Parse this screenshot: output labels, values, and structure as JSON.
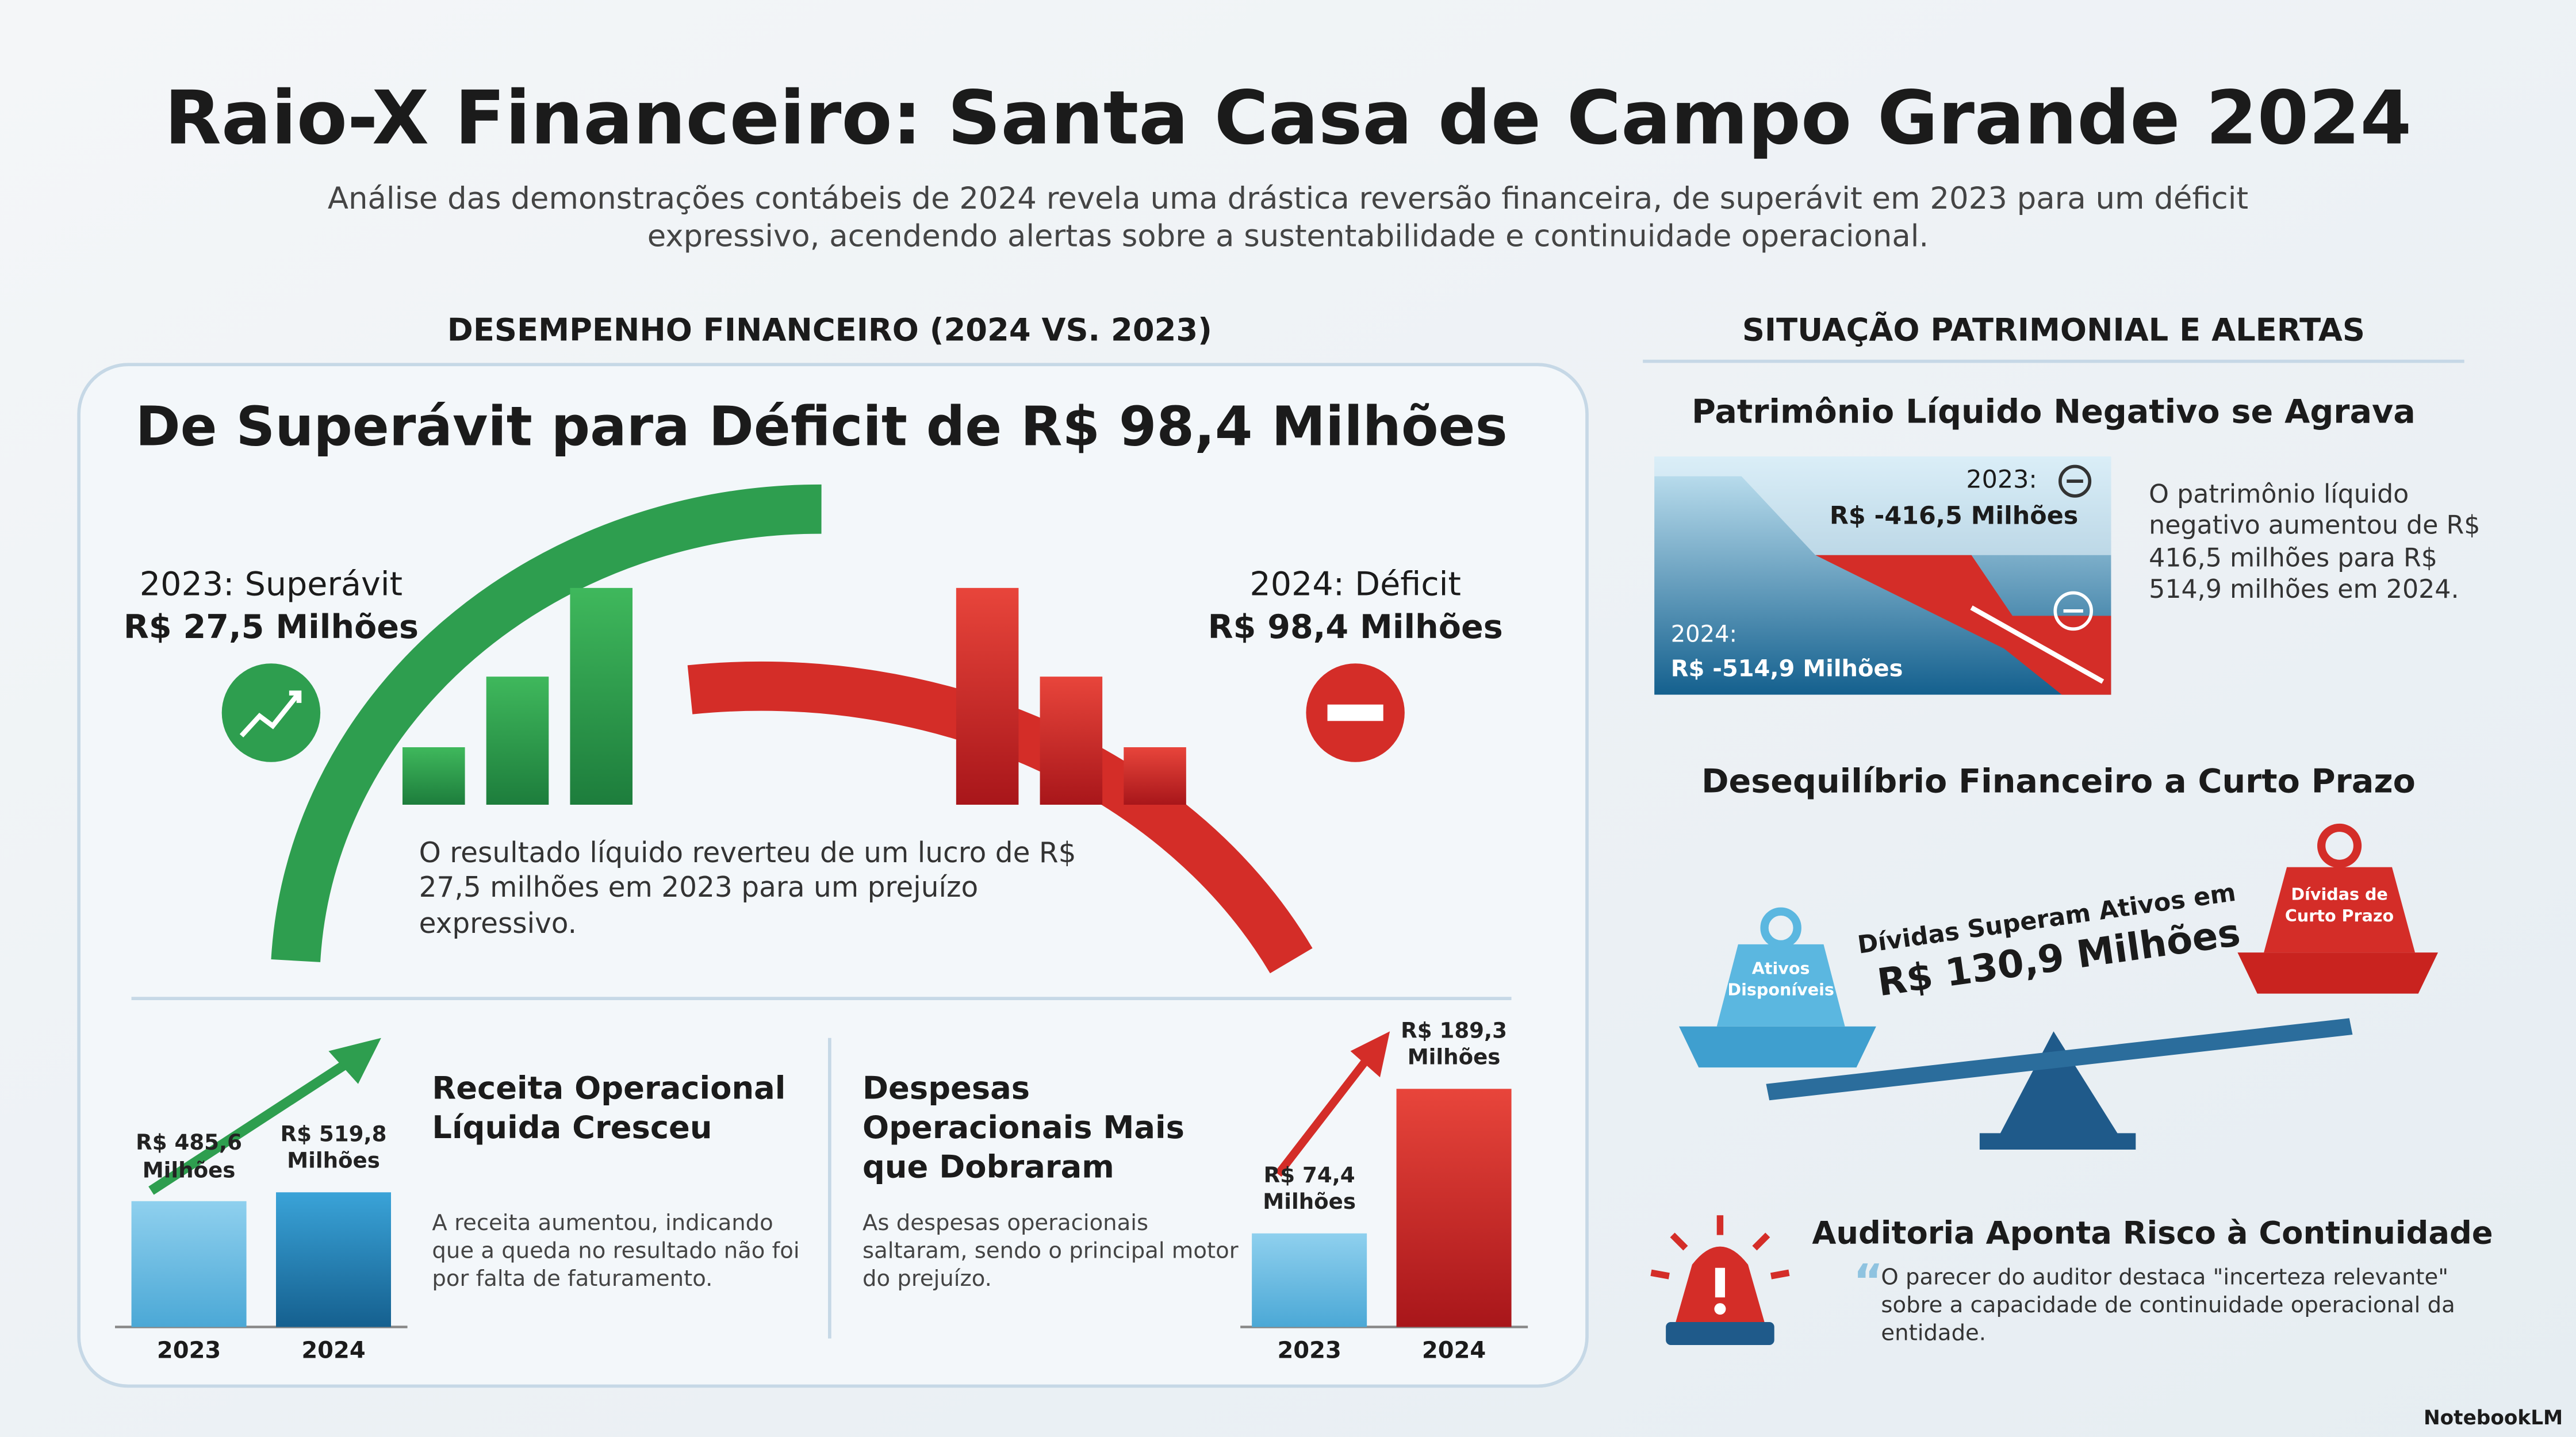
{
  "header": {
    "title": "Raio-X Financeiro: Santa Casa de Campo Grande 2024",
    "subtitle": "Análise das demonstrações contábeis de 2024 revela uma drástica reversão financeira, de superávit em 2023 para um déficit expressivo, acendendo alertas sobre a sustentabilidade e continuidade operacional."
  },
  "performance": {
    "heading": "DESEMPENHO FINANCEIRO (2024 VS. 2023)",
    "title": "De Superávit para Déficit de R$ 98,4 Milhões",
    "label_2023": "2023: Superávit",
    "value_2023": "R$ 27,5 Milhões",
    "label_2024": "2024: Déficit",
    "value_2024": "R$ 98,4 Milhões",
    "note": "O resultado líquido reverteu de um lucro de R$ 27,5 milhões em 2023 para um prejuízo expressivo."
  },
  "revenue": {
    "title": "Receita Operacional Líquida Cresceu",
    "text": "A receita aumentou, indicando que a queda no resultado não foi por falta de faturamento.",
    "categories": [
      "2023",
      "2024"
    ],
    "values": [
      485.6,
      519.8
    ],
    "value_labels": [
      "R$ 485,6 Milhões",
      "R$ 519,8 Milhões"
    ]
  },
  "expenses": {
    "title": "Despesas Operacionais Mais que Dobraram",
    "text": "As despesas operacionais saltaram, sendo o principal motor do prejuízo.",
    "categories": [
      "2023",
      "2024"
    ],
    "values": [
      74.4,
      189.3
    ],
    "value_labels": [
      "R$ 74,4 Milhões",
      "R$ 189,3 Milhões"
    ]
  },
  "situation": {
    "heading": "SITUAÇÃO PATRIMONIAL E ALERTAS",
    "equity": {
      "title": "Patrimônio Líquido Negativo se Agrava",
      "label_2023": "2023:",
      "value_2023": "R$ -416,5 Milhões",
      "label_2024": "2024:",
      "value_2024": "R$ -514,9 Milhões",
      "text": "O patrimônio líquido negativo aumentou de R$ 416,5 milhões para R$ 514,9 milhões em 2024."
    },
    "balance": {
      "title": "Desequilíbrio Financeiro a Curto Prazo",
      "left_weight": "Ativos Disponíveis",
      "right_weight": "Dívidas de Curto Prazo",
      "caption": "Dívidas Superam Ativos em",
      "value": "R$ 130,9 Milhões"
    },
    "audit": {
      "title": "Auditoria Aponta Risco à Continuidade",
      "quote": "O parecer do auditor destaca \"incerteza relevante\" sobre a capacidade de continuidade operacional da entidade."
    }
  },
  "footer": "NotebookLM"
}
